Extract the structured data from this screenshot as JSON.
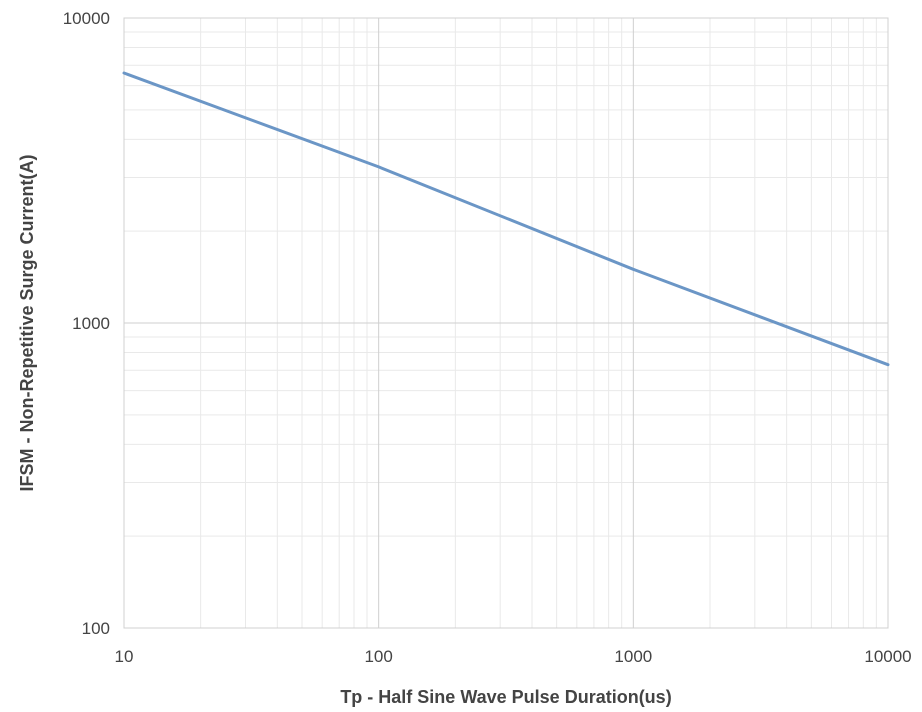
{
  "chart_data": {
    "type": "line",
    "xscale": "log",
    "yscale": "log",
    "xlim": [
      10,
      10000
    ],
    "ylim": [
      100,
      10000
    ],
    "xticks": [
      10,
      100,
      1000,
      10000
    ],
    "yticks": [
      100,
      1000,
      10000
    ],
    "xtick_labels": [
      "10",
      "100",
      "1000",
      "10000"
    ],
    "ytick_labels": [
      "100",
      "1000",
      "10000"
    ],
    "xlabel": "Tp - Half Sine Wave Pulse Duration(us)",
    "ylabel": "IFSM - Non-Repetitive Surge Current(A)",
    "grid": {
      "major": true,
      "minor": true
    },
    "series": [
      {
        "color": "#6b96c6",
        "x": [
          10,
          100,
          1000,
          10000
        ],
        "y": [
          6600,
          3250,
          1500,
          730
        ]
      }
    ]
  }
}
